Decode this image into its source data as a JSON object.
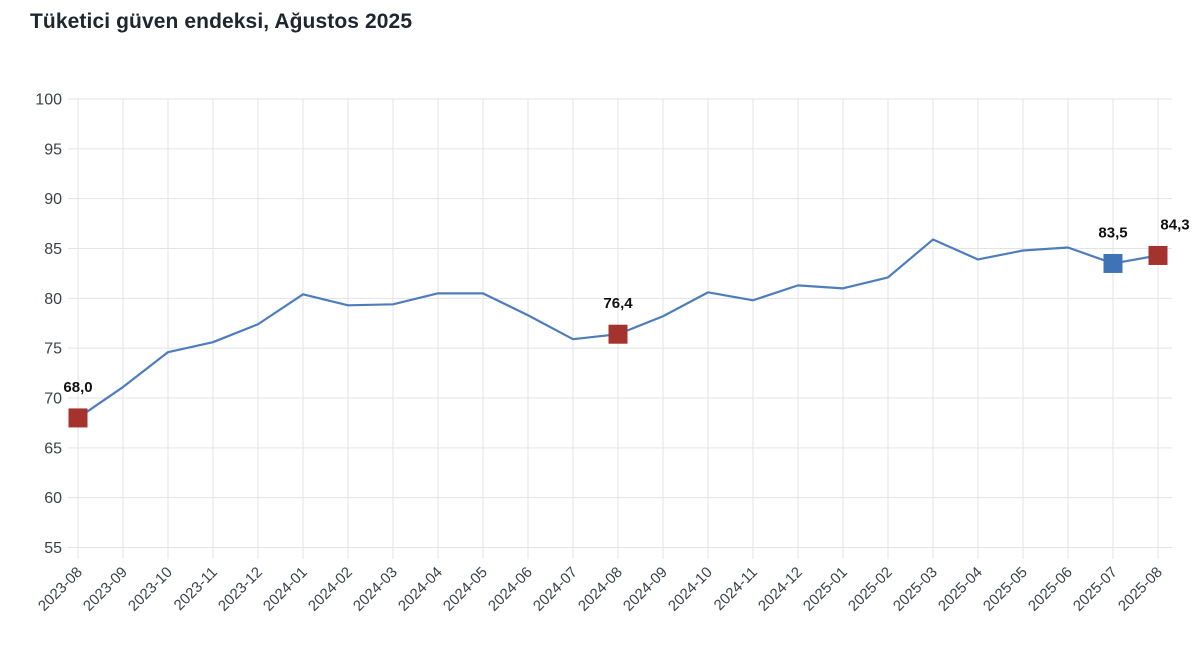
{
  "title": "Tüketici güven endeksi, Ağustos 2025",
  "colors": {
    "background": "#ffffff",
    "gridline": "#e3e3e3",
    "line": "#4e7dbb",
    "marker_red": "#a5332d",
    "marker_blue": "#3e73b6",
    "axis_text": "#3a4149",
    "title_text": "#20262e"
  },
  "chart_data": {
    "type": "line",
    "title": "Tüketici güven endeksi, Ağustos 2025",
    "xlabel": "",
    "ylabel": "",
    "ylim": [
      55,
      100
    ],
    "yticks": [
      100,
      95,
      90,
      85,
      80,
      75,
      70,
      65,
      60,
      55
    ],
    "grid": true,
    "legend": false,
    "x_categories": [
      "2023-08",
      "2023-09",
      "2023-10",
      "2023-11",
      "2023-12",
      "2024-01",
      "2024-02",
      "2024-03",
      "2024-04",
      "2024-05",
      "2024-06",
      "2024-07",
      "2024-08",
      "2024-09",
      "2024-10",
      "2024-11",
      "2024-12",
      "2025-01",
      "2025-02",
      "2025-03",
      "2025-04",
      "2025-05",
      "2025-06",
      "2025-07",
      "2025-08"
    ],
    "series": [
      {
        "name": "Tüketici güven endeksi",
        "color": "#4e7dbb",
        "values": [
          68.0,
          71.1,
          74.6,
          75.6,
          77.4,
          80.4,
          79.3,
          79.4,
          80.5,
          80.5,
          78.3,
          75.9,
          76.4,
          78.2,
          80.6,
          79.8,
          81.3,
          81.0,
          82.1,
          85.9,
          83.9,
          84.8,
          85.1,
          83.5,
          84.3
        ]
      }
    ],
    "marked_points": [
      {
        "category": "2023-08",
        "index": 0,
        "value": 68.0,
        "label": "68,0",
        "marker_color": "#a5332d",
        "label_dx": 0
      },
      {
        "category": "2024-08",
        "index": 12,
        "value": 76.4,
        "label": "76,4",
        "marker_color": "#a5332d",
        "label_dx": 0
      },
      {
        "category": "2025-07",
        "index": 23,
        "value": 83.5,
        "label": "83,5",
        "marker_color": "#3e73b6",
        "label_dx": 0
      },
      {
        "category": "2025-08",
        "index": 24,
        "value": 84.3,
        "label": "84,3",
        "marker_color": "#a5332d",
        "label_dx": 17
      }
    ]
  }
}
